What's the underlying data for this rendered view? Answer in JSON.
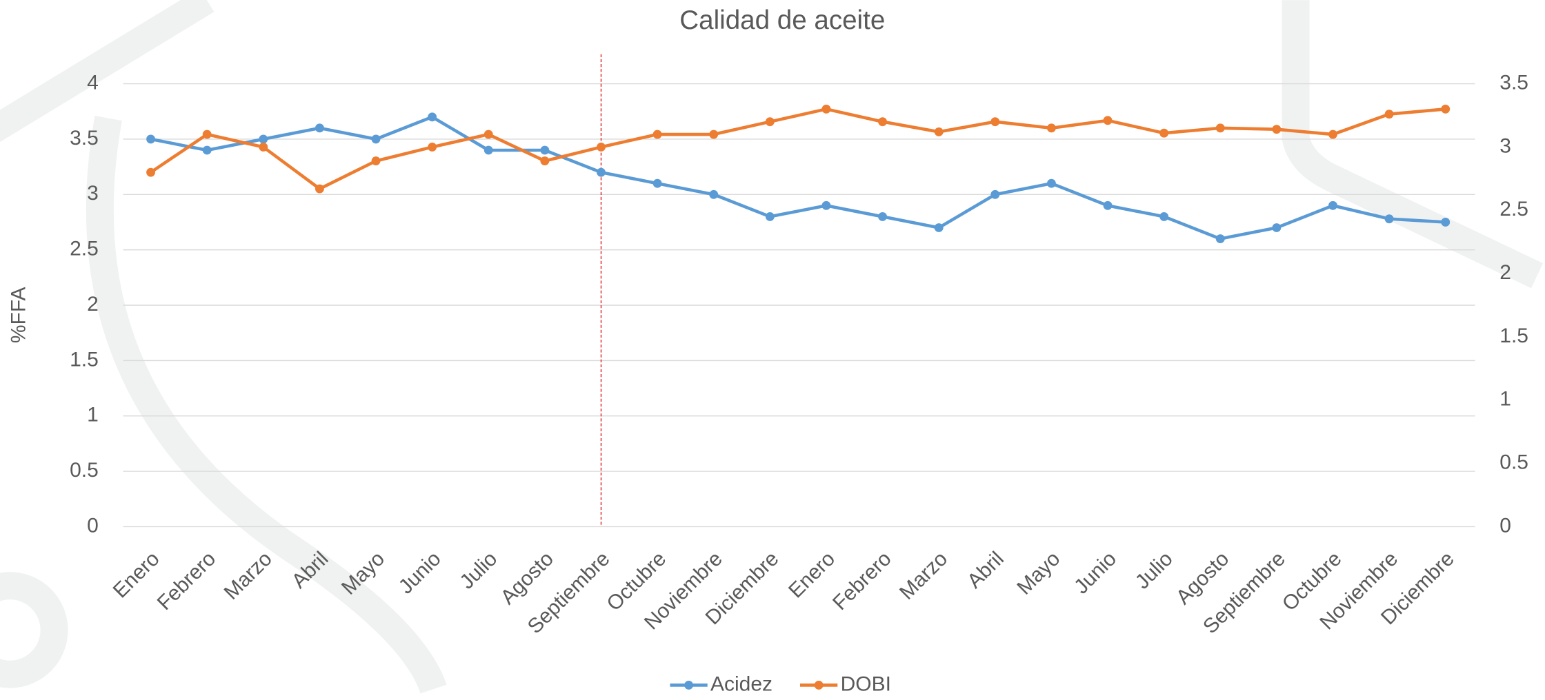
{
  "chart_data": {
    "type": "line",
    "title": "Calidad de aceite",
    "y_label": "%FFA",
    "categories": [
      "Enero",
      "Febrero",
      "Marzo",
      "Abril",
      "Mayo",
      "Junio",
      "Julio",
      "Agosto",
      "Septiembre",
      "Octubre",
      "Noviembre",
      "Diciembre",
      "Enero",
      "Febrero",
      "Marzo",
      "Abril",
      "Mayo",
      "Junio",
      "Julio",
      "Agosto",
      "Septiembre",
      "Octubre",
      "Noviembre",
      "Diciembre"
    ],
    "series": [
      {
        "name": "Acidez",
        "color": "#5b9bd5",
        "axis": "y",
        "values": [
          3.5,
          3.4,
          3.5,
          3.6,
          3.5,
          3.7,
          3.4,
          3.4,
          3.2,
          3.1,
          3.0,
          2.8,
          2.9,
          2.8,
          2.7,
          3.0,
          3.1,
          2.9,
          2.8,
          2.6,
          2.7,
          2.9,
          2.78,
          2.75
        ]
      },
      {
        "name": "DOBI",
        "color": "#ed7d31",
        "axis": "y2",
        "values": [
          2.8,
          3.1,
          3.0,
          2.67,
          2.89,
          3.0,
          3.1,
          2.89,
          3.0,
          3.1,
          3.1,
          3.2,
          3.3,
          3.2,
          3.12,
          3.2,
          3.15,
          3.21,
          3.11,
          3.15,
          3.14,
          3.1,
          3.26,
          3.3
        ]
      }
    ],
    "ylim": [
      0,
      4
    ],
    "yticks": [
      0,
      0.5,
      1,
      1.5,
      2,
      2.5,
      3,
      3.5,
      4
    ],
    "y2lim": [
      0,
      3.5
    ],
    "y2ticks": [
      0,
      0.5,
      1,
      1.5,
      2,
      2.5,
      3,
      3.5
    ],
    "grid": true,
    "legend": "bottom",
    "reference_line": {
      "category_index": 8,
      "color": "#e02020",
      "dashed": true
    }
  }
}
